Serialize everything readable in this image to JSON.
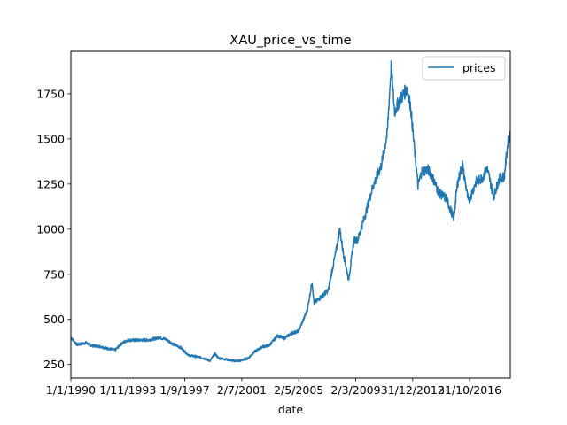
{
  "chart_data": {
    "type": "line",
    "title": "XAU_price_vs_time",
    "xlabel": "date",
    "ylabel": "",
    "x_tick_labels": [
      "1/1/1990",
      "1/11/1993",
      "1/9/1997",
      "2/7/2001",
      "2/5/2005",
      "2/3/2009",
      "31/12/2012",
      "31/10/2016"
    ],
    "y_ticks": [
      250,
      500,
      750,
      1000,
      1250,
      1500,
      1750
    ],
    "y_tick_labels": [
      "250",
      "500",
      "750",
      "1000",
      "1250",
      "1500",
      "1750"
    ],
    "ylim": [
      175,
      1985
    ],
    "xlim": [
      "1990-01-01",
      "2019-09-30"
    ],
    "grid": false,
    "legend": {
      "position": "top-right",
      "entries": [
        "prices"
      ]
    },
    "series": [
      {
        "name": "prices",
        "color": "#1f77b4",
        "x": [
          "1990-01-01",
          "1990-06-01",
          "1991-01-01",
          "1991-06-01",
          "1992-01-01",
          "1992-06-01",
          "1993-01-01",
          "1993-06-01",
          "1993-11-01",
          "1994-06-01",
          "1995-01-01",
          "1995-06-01",
          "1996-01-01",
          "1996-06-01",
          "1997-01-01",
          "1997-06-01",
          "1997-09-01",
          "1998-01-01",
          "1998-06-01",
          "1999-01-01",
          "1999-06-01",
          "1999-10-01",
          "2000-01-01",
          "2000-06-01",
          "2001-01-01",
          "2001-06-01",
          "2002-01-01",
          "2002-06-01",
          "2003-01-01",
          "2003-06-01",
          "2004-01-01",
          "2004-06-01",
          "2005-01-01",
          "2005-06-01",
          "2006-01-01",
          "2006-05-01",
          "2006-06-15",
          "2007-01-01",
          "2007-06-01",
          "2008-01-01",
          "2008-03-15",
          "2008-06-01",
          "2008-10-20",
          "2009-03-01",
          "2009-06-01",
          "2010-01-01",
          "2010-06-01",
          "2011-01-01",
          "2011-06-01",
          "2011-09-05",
          "2011-12-01",
          "2012-03-01",
          "2012-10-01",
          "2013-01-01",
          "2013-04-01",
          "2013-07-01",
          "2013-10-01",
          "2014-03-01",
          "2014-06-01",
          "2014-12-01",
          "2015-06-01",
          "2015-12-01",
          "2016-03-01",
          "2016-07-01",
          "2016-12-01",
          "2017-06-01",
          "2017-12-01",
          "2018-03-01",
          "2018-08-15",
          "2019-01-01",
          "2019-05-01",
          "2019-08-01",
          "2019-09-30"
        ],
        "values": [
          400,
          360,
          370,
          355,
          350,
          340,
          330,
          365,
          385,
          385,
          385,
          388,
          400,
          390,
          360,
          345,
          325,
          300,
          295,
          285,
          270,
          310,
          285,
          280,
          270,
          270,
          285,
          320,
          350,
          355,
          410,
          395,
          425,
          435,
          550,
          710,
          590,
          630,
          660,
          900,
          1000,
          880,
          720,
          940,
          940,
          1100,
          1230,
          1350,
          1530,
          1900,
          1650,
          1700,
          1780,
          1680,
          1450,
          1240,
          1320,
          1330,
          1300,
          1200,
          1170,
          1060,
          1250,
          1360,
          1150,
          1260,
          1290,
          1340,
          1180,
          1280,
          1290,
          1480,
          1520
        ]
      }
    ]
  }
}
